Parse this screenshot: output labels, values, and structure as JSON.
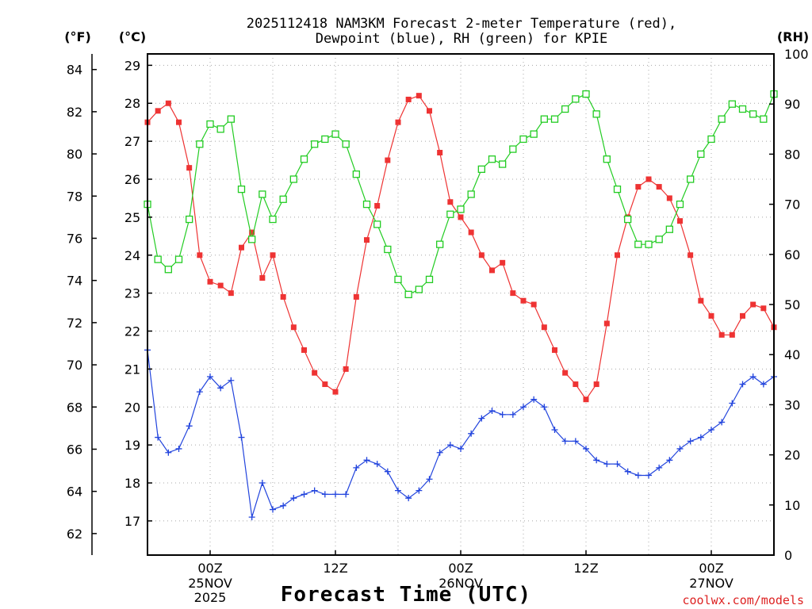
{
  "chart_data": {
    "type": "line",
    "title_lines": [
      "2025112418 NAM3KM Forecast 2-meter Temperature (red),",
      "Dewpoint (blue), RH (green) for KPIE"
    ],
    "xlabel": "Forecast Time (UTC)",
    "credit": "coolwx.com/models",
    "units": {
      "left_f": "(°F)",
      "left_c": "(°C)",
      "right_rh": "(RH)"
    },
    "x_range_hours": [
      0,
      60
    ],
    "x_ticks": [
      {
        "hour": 6,
        "label": "00Z",
        "sub": [
          "25NOV",
          "2025"
        ]
      },
      {
        "hour": 18,
        "label": "12Z",
        "sub": []
      },
      {
        "hour": 30,
        "label": "00Z",
        "sub": [
          "26NOV"
        ]
      },
      {
        "hour": 42,
        "label": "12Z",
        "sub": []
      },
      {
        "hour": 54,
        "label": "00Z",
        "sub": [
          "27NOV"
        ]
      }
    ],
    "celsius_axis": {
      "range": [
        16.1,
        29.3
      ],
      "ticks": [
        "17",
        "18",
        "19",
        "20",
        "21",
        "22",
        "23",
        "24",
        "25",
        "26",
        "27",
        "28",
        "29"
      ]
    },
    "fahrenheit_axis": {
      "ticks": [
        "62",
        "64",
        "66",
        "68",
        "70",
        "72",
        "74",
        "76",
        "78",
        "80",
        "82",
        "84"
      ]
    },
    "rh_axis": {
      "range": [
        0,
        100
      ],
      "ticks": [
        "0",
        "10",
        "20",
        "30",
        "40",
        "50",
        "60",
        "70",
        "80",
        "90",
        "100"
      ]
    },
    "series": [
      {
        "name": "Temperature",
        "axis": "celsius",
        "color": "#ee3333",
        "marker": "filled-square",
        "values": [
          27.5,
          27.8,
          28.0,
          27.5,
          26.3,
          24.0,
          23.3,
          23.2,
          23.0,
          24.2,
          24.6,
          23.4,
          24.0,
          22.9,
          22.1,
          21.5,
          20.9,
          20.6,
          20.4,
          21.0,
          22.9,
          24.4,
          25.3,
          26.5,
          27.5,
          28.1,
          28.2,
          27.8,
          26.7,
          25.4,
          25.0,
          24.6,
          24.0,
          23.6,
          23.8,
          23.0,
          22.8,
          22.7,
          22.1,
          21.5,
          20.9,
          20.6,
          20.2,
          20.6,
          22.2,
          24.0,
          25.0,
          25.8,
          26.0,
          25.8,
          25.5,
          24.9,
          24.0,
          22.8,
          22.4,
          21.9,
          21.9,
          22.4,
          22.7,
          22.6,
          22.1
        ]
      },
      {
        "name": "Dewpoint",
        "axis": "celsius",
        "color": "#2244dd",
        "marker": "plus",
        "values": [
          21.5,
          19.2,
          18.8,
          18.9,
          19.5,
          20.4,
          20.8,
          20.5,
          20.7,
          19.2,
          17.1,
          18.0,
          17.3,
          17.4,
          17.6,
          17.7,
          17.8,
          17.7,
          17.7,
          17.7,
          18.4,
          18.6,
          18.5,
          18.3,
          17.8,
          17.6,
          17.8,
          18.1,
          18.8,
          19.0,
          18.9,
          19.3,
          19.7,
          19.9,
          19.8,
          19.8,
          20.0,
          20.2,
          20.0,
          19.4,
          19.1,
          19.1,
          18.9,
          18.6,
          18.5,
          18.5,
          18.3,
          18.2,
          18.2,
          18.4,
          18.6,
          18.9,
          19.1,
          19.2,
          19.4,
          19.6,
          20.1,
          20.6,
          20.8,
          20.6,
          20.8
        ]
      },
      {
        "name": "RH",
        "axis": "rh",
        "color": "#22cc22",
        "marker": "open-square",
        "values": [
          70,
          59,
          57,
          59,
          67,
          82,
          86,
          85,
          87,
          73,
          63,
          72,
          67,
          71,
          75,
          79,
          82,
          83,
          84,
          82,
          76,
          70,
          66,
          61,
          55,
          52,
          53,
          55,
          62,
          68,
          69,
          72,
          77,
          79,
          78,
          81,
          83,
          84,
          87,
          87,
          89,
          91,
          92,
          88,
          79,
          73,
          67,
          62,
          62,
          63,
          65,
          70,
          75,
          80,
          83,
          87,
          90,
          89,
          88,
          87,
          92
        ]
      }
    ]
  }
}
